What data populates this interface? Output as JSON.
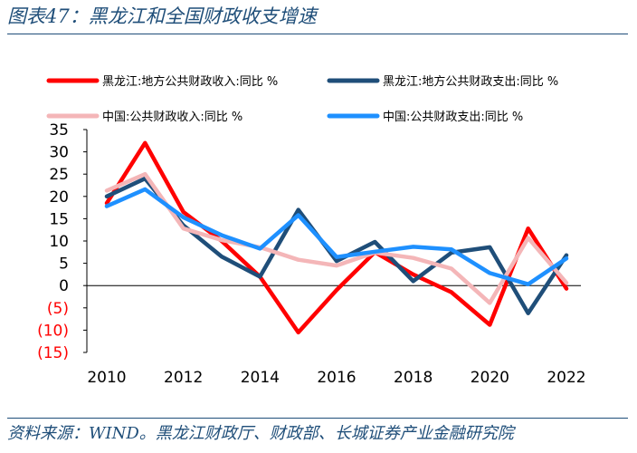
{
  "figure_title": "图表47：黑龙江和全国财政收支增速",
  "source_text": "资料来源：WIND。黑龙江财政厅、财政部、长城证券产业金融研究院",
  "chart_data": {
    "type": "line",
    "title": "黑龙江和全国财政收支增速",
    "xlabel": "",
    "ylabel": "",
    "x": [
      2010,
      2011,
      2012,
      2013,
      2014,
      2015,
      2016,
      2017,
      2018,
      2019,
      2020,
      2021,
      2022
    ],
    "xlim": [
      2010,
      2022
    ],
    "ylim": [
      -15,
      35
    ],
    "x_ticks": [
      2010,
      2012,
      2014,
      2016,
      2018,
      2020,
      2022
    ],
    "y_ticks": [
      35,
      30,
      25,
      20,
      15,
      10,
      5,
      0,
      -5,
      -10,
      -15
    ],
    "y_tick_labels": [
      "35",
      "30",
      "25",
      "20",
      "15",
      "10",
      "5",
      "0",
      "(5)",
      "(10)",
      "(15)"
    ],
    "grid": false,
    "legend_position": "top",
    "series": [
      {
        "name": "黑龙江:地方公共财政收入:同比 %",
        "color": "#ff0000",
        "values": [
          18.5,
          32,
          16.5,
          10,
          2,
          -10.5,
          -1,
          7.5,
          2.5,
          -1.5,
          -8.8,
          12.8,
          -0.7
        ]
      },
      {
        "name": "黑龙江:地方公共财政支出:同比 %",
        "color": "#1f4e79",
        "values": [
          20,
          24,
          13.5,
          6.5,
          2,
          17,
          5.5,
          9.8,
          1,
          7.4,
          8.6,
          -6.2,
          6.8
        ]
      },
      {
        "name": "中国:公共财政收入:同比 %",
        "color": "#f4b6b8",
        "values": [
          21.3,
          25,
          12.8,
          10.2,
          8.6,
          5.8,
          4.5,
          7.4,
          6.2,
          3.8,
          -3.9,
          10.7,
          0.6
        ]
      },
      {
        "name": "中国:公共财政支出:同比 %",
        "color": "#1e90ff",
        "values": [
          17.8,
          21.6,
          15.3,
          11.3,
          8.3,
          15.8,
          6.4,
          7.6,
          8.7,
          8.1,
          2.8,
          0.3,
          6.1
        ]
      }
    ]
  }
}
